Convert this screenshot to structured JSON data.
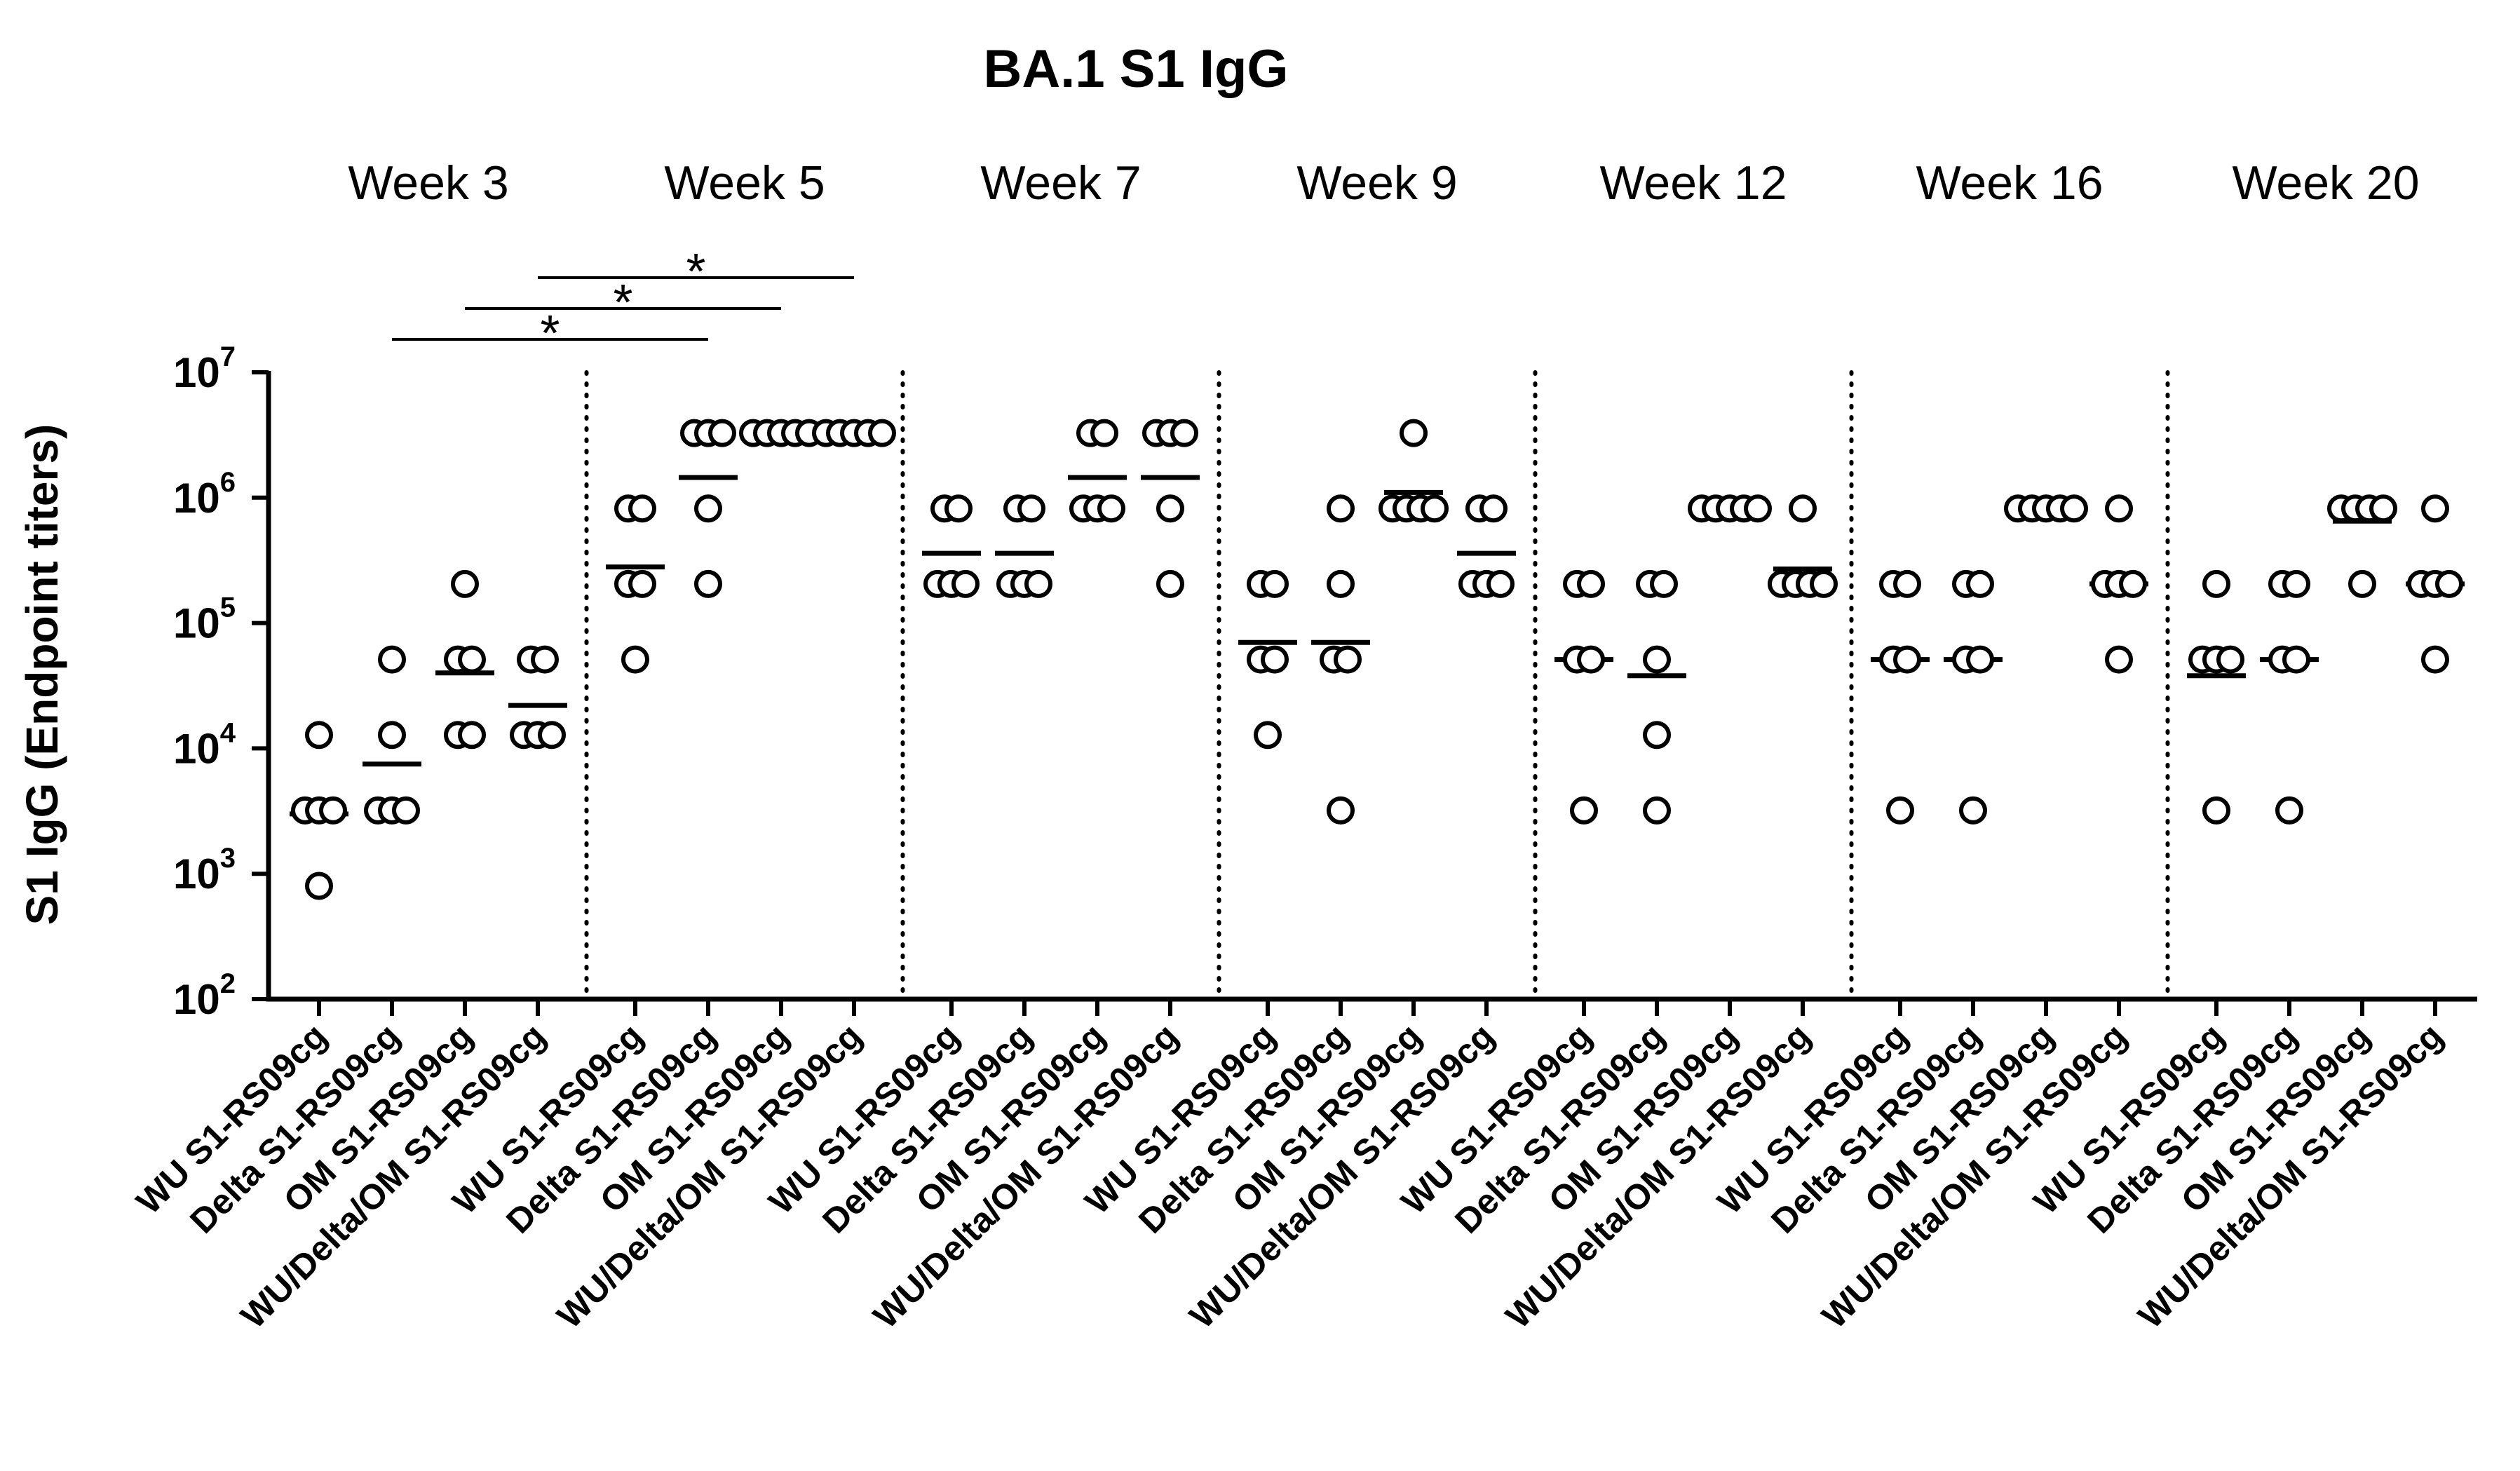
{
  "chart_data": {
    "type": "scatter",
    "title": "BA.1 S1 IgG",
    "ylabel": "S1 IgG (Endpoint titers)",
    "xlabel": "",
    "yscale": "log10",
    "ylim": [
      100,
      10000000
    ],
    "yticks": [
      {
        "value": 100,
        "base": "10",
        "exp": "2"
      },
      {
        "value": 1000,
        "base": "10",
        "exp": "3"
      },
      {
        "value": 10000,
        "base": "10",
        "exp": "4"
      },
      {
        "value": 100000,
        "base": "10",
        "exp": "5"
      },
      {
        "value": 1000000,
        "base": "10",
        "exp": "6"
      },
      {
        "value": 10000000,
        "base": "10",
        "exp": "7"
      }
    ],
    "groups": [
      "WU S1-RS09cg",
      "Delta S1-RS09cg",
      "OM S1-RS09cg",
      "WU/Delta/OM S1-RS09cg"
    ],
    "panels": [
      {
        "label": "Week 3",
        "points": [
          [
            800,
            3200,
            3200,
            3200,
            12800
          ],
          [
            3200,
            3200,
            3200,
            12800,
            51200
          ],
          [
            12800,
            12800,
            51200,
            51200,
            204800
          ],
          [
            12800,
            12800,
            12800,
            51200,
            51200
          ]
        ],
        "means": [
          3000,
          7500,
          40000,
          22000
        ]
      },
      {
        "label": "Week 5",
        "points": [
          [
            51200,
            204800,
            204800,
            819200,
            819200
          ],
          [
            204800,
            819200,
            3276800,
            3276800,
            3276800
          ],
          [
            3276800,
            3276800,
            3276800,
            3276800,
            3276800
          ],
          [
            3276800,
            3276800,
            3276800,
            3276800,
            3276800
          ]
        ],
        "means": [
          280000,
          1450000,
          3276800,
          3276800
        ]
      },
      {
        "label": "Week 7",
        "points": [
          [
            204800,
            204800,
            204800,
            819200,
            819200
          ],
          [
            204800,
            204800,
            204800,
            819200,
            819200
          ],
          [
            819200,
            819200,
            819200,
            3276800,
            3276800
          ],
          [
            204800,
            819200,
            3276800,
            3276800,
            3276800
          ]
        ],
        "means": [
          360000,
          360000,
          1450000,
          1450000
        ]
      },
      {
        "label": "Week 9",
        "points": [
          [
            12800,
            51200,
            51200,
            204800,
            204800
          ],
          [
            3200,
            51200,
            51200,
            204800,
            819200
          ],
          [
            819200,
            819200,
            819200,
            819200,
            3276800
          ],
          [
            204800,
            204800,
            204800,
            819200,
            819200
          ]
        ],
        "means": [
          70000,
          70000,
          1100000,
          360000
        ]
      },
      {
        "label": "Week 12",
        "points": [
          [
            3200,
            51200,
            51200,
            204800,
            204800
          ],
          [
            3200,
            12800,
            51200,
            204800,
            204800
          ],
          [
            819200,
            819200,
            819200,
            819200,
            819200
          ],
          [
            204800,
            204800,
            204800,
            204800,
            819200
          ]
        ],
        "means": [
          51200,
          38000,
          819200,
          270000
        ]
      },
      {
        "label": "Week 16",
        "points": [
          [
            3200,
            51200,
            51200,
            204800,
            204800
          ],
          [
            3200,
            51200,
            51200,
            204800,
            204800
          ],
          [
            819200,
            819200,
            819200,
            819200,
            819200
          ],
          [
            51200,
            204800,
            204800,
            204800,
            819200
          ]
        ],
        "means": [
          51200,
          51200,
          819200,
          204800
        ]
      },
      {
        "label": "Week 20",
        "points": [
          [
            3200,
            51200,
            51200,
            51200,
            204800
          ],
          [
            3200,
            51200,
            51200,
            204800,
            204800
          ],
          [
            204800,
            819200,
            819200,
            819200,
            819200
          ],
          [
            51200,
            204800,
            204800,
            204800,
            819200
          ]
        ],
        "means": [
          38000,
          51200,
          650000,
          204800
        ]
      }
    ],
    "annotations": [
      {
        "text": "*",
        "from_panel": 0,
        "from_group": 1,
        "to_panel": 1,
        "to_group": 1
      },
      {
        "text": "*",
        "from_panel": 0,
        "from_group": 2,
        "to_panel": 1,
        "to_group": 2
      },
      {
        "text": "*",
        "from_panel": 0,
        "from_group": 3,
        "to_panel": 1,
        "to_group": 3
      }
    ]
  }
}
